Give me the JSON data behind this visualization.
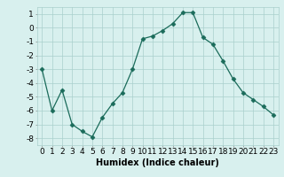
{
  "x": [
    0,
    1,
    2,
    3,
    4,
    5,
    6,
    7,
    8,
    9,
    10,
    11,
    12,
    13,
    14,
    15,
    16,
    17,
    18,
    19,
    20,
    21,
    22,
    23
  ],
  "y": [
    -3,
    -6,
    -4.5,
    -7,
    -7.5,
    -7.9,
    -6.5,
    -5.5,
    -4.7,
    -3.0,
    -0.8,
    -0.6,
    -0.2,
    0.3,
    1.1,
    1.1,
    -0.7,
    -1.2,
    -2.4,
    -3.7,
    -4.7,
    -5.2,
    -5.7,
    -6.3
  ],
  "line_color": "#1a6b5a",
  "marker": "D",
  "marker_size": 2.5,
  "bg_color": "#d8f0ee",
  "grid_color": "#aacfcc",
  "xlabel": "Humidex (Indice chaleur)",
  "xlim": [
    -0.5,
    23.5
  ],
  "ylim": [
    -8.5,
    1.5
  ],
  "yticks": [
    1,
    0,
    -1,
    -2,
    -3,
    -4,
    -5,
    -6,
    -7,
    -8
  ],
  "xlabel_fontsize": 7,
  "tick_fontsize": 6.5
}
